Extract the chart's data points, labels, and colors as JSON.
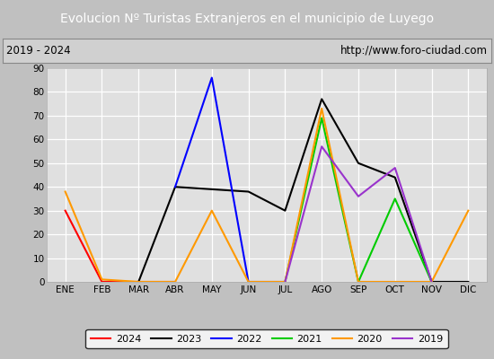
{
  "title": "Evolucion Nº Turistas Extranjeros en el municipio de Luyego",
  "subtitle_left": "2019 - 2024",
  "subtitle_right": "http://www.foro-ciudad.com",
  "months": [
    "ENE",
    "FEB",
    "MAR",
    "ABR",
    "MAY",
    "JUN",
    "JUL",
    "AGO",
    "SEP",
    "OCT",
    "NOV",
    "DIC"
  ],
  "ylim": [
    0,
    90
  ],
  "yticks": [
    0,
    10,
    20,
    30,
    40,
    50,
    60,
    70,
    80,
    90
  ],
  "series": [
    {
      "year": "2024",
      "color": "#ff0000",
      "data": [
        30,
        0,
        0,
        0,
        null,
        null,
        null,
        null,
        null,
        null,
        null,
        null
      ]
    },
    {
      "year": "2023",
      "color": "#000000",
      "data": [
        null,
        null,
        0,
        40,
        39,
        38,
        30,
        77,
        50,
        44,
        0,
        0
      ]
    },
    {
      "year": "2022",
      "color": "#0000ff",
      "data": [
        null,
        null,
        null,
        40,
        86,
        0,
        0,
        null,
        null,
        null,
        null,
        null
      ]
    },
    {
      "year": "2021",
      "color": "#00cc00",
      "data": [
        null,
        null,
        null,
        null,
        null,
        null,
        0,
        69,
        0,
        35,
        0,
        null
      ]
    },
    {
      "year": "2020",
      "color": "#ff9900",
      "data": [
        38,
        1,
        0,
        0,
        30,
        0,
        0,
        73,
        0,
        0,
        0,
        30
      ]
    },
    {
      "year": "2019",
      "color": "#9933cc",
      "data": [
        null,
        null,
        null,
        null,
        null,
        null,
        0,
        57,
        36,
        48,
        0,
        null
      ]
    }
  ],
  "title_bg_color": "#4472c4",
  "title_text_color": "#ffffff",
  "plot_bg_color": "#e0e0e0",
  "grid_color": "#ffffff",
  "subtitle_bg_color": "#d0d0d0",
  "subtitle_border_color": "#888888",
  "fig_bg_color": "#c0c0c0",
  "legend_bg": "#ffffff",
  "legend_border": "#000000"
}
